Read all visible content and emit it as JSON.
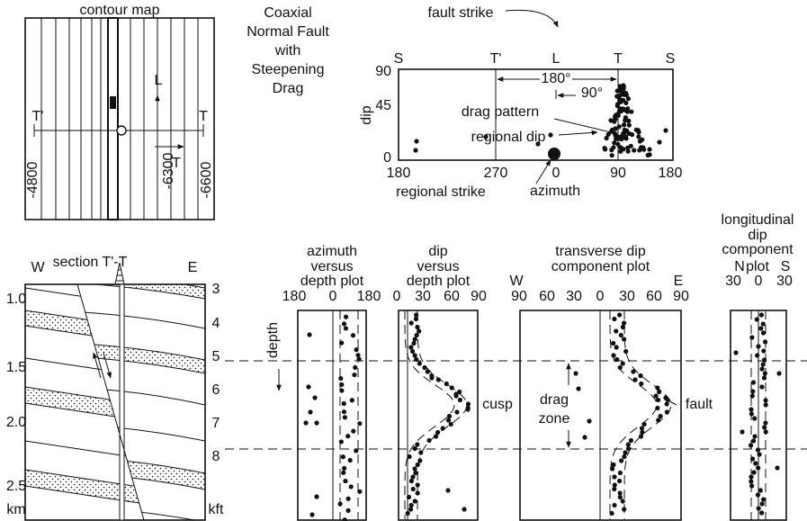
{
  "contour_map": {
    "title": "contour map",
    "t_prime": "T'",
    "t": "T",
    "l_arrow": "L",
    "t_arrow": "T",
    "contours": [
      "-4800",
      "-6300",
      "-6600"
    ]
  },
  "section": {
    "title": "section T'-T",
    "west": "W",
    "east": "E",
    "km_labels": [
      "1.0",
      "1.5",
      "2.0",
      "2.5",
      "km"
    ],
    "kft_labels": [
      "3",
      "4",
      "5",
      "6",
      "7",
      "8",
      "kft"
    ]
  },
  "heading": [
    "Coaxial",
    "Normal Fault",
    "with",
    "Steepening",
    "Drag"
  ],
  "stereo": {
    "fault_strike": "fault strike",
    "top_labels": [
      "S",
      "T'",
      "L",
      "T",
      "S"
    ],
    "y_label": "dip",
    "y_ticks": [
      "90",
      "45",
      "0"
    ],
    "x_ticks": [
      "180",
      "270",
      "0",
      "90",
      "180"
    ],
    "angle_180": "180°",
    "angle_90": "90°",
    "drag_pattern": "drag pattern",
    "regional_dip": "regional dip",
    "regional_strike": "regional strike",
    "azimuth": "azimuth"
  },
  "plots": [
    {
      "title": [
        "azimuth",
        "versus",
        "depth plot"
      ],
      "ticks": [
        "180",
        "0",
        "180"
      ]
    },
    {
      "title": [
        "dip",
        "versus",
        "depth plot"
      ],
      "ticks": [
        "0",
        "30",
        "60",
        "90"
      ]
    },
    {
      "title": [
        "transverse dip",
        "component plot"
      ],
      "left": "W",
      "right": "E",
      "ticks": [
        "90",
        "60",
        "30",
        "0",
        "30",
        "60",
        "90"
      ]
    },
    {
      "title": [
        "longitudinal",
        "dip",
        "component",
        "plot"
      ],
      "left": "N",
      "right": "S",
      "ticks": [
        "30",
        "0",
        "30"
      ]
    }
  ],
  "depth_label": "depth",
  "cusp": "cusp",
  "fault": "fault",
  "drag_zone": [
    "drag",
    "zone"
  ]
}
